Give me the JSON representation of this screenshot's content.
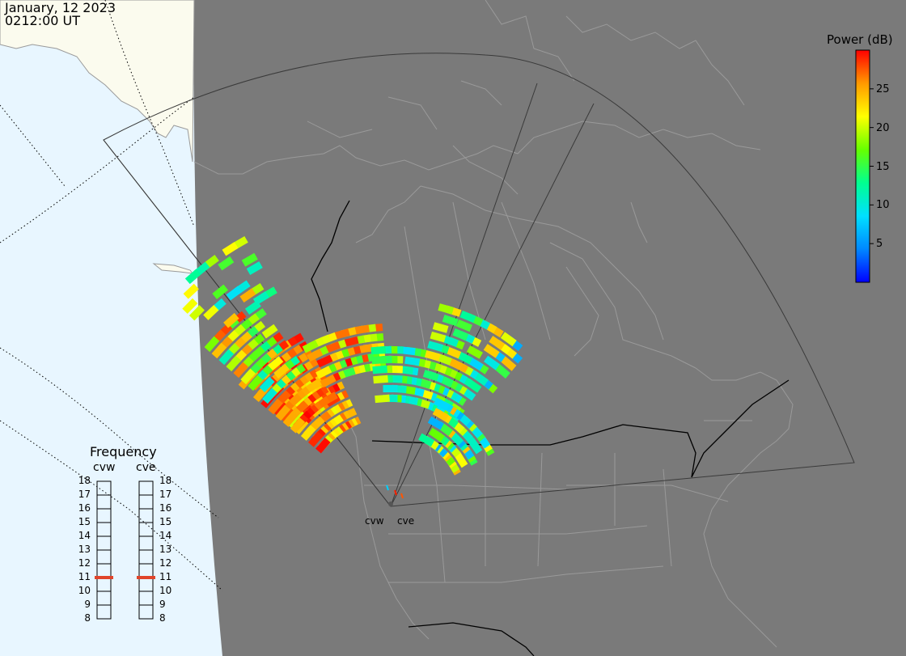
{
  "header": {
    "date": "January, 12 2023",
    "time": "0212:00 UT"
  },
  "colorbar": {
    "title": "Power (dB)",
    "ticks": [
      "25",
      "20",
      "15",
      "10",
      "5"
    ],
    "tick_values": [
      25,
      20,
      15,
      10,
      5
    ],
    "range": [
      0,
      30
    ],
    "colors": [
      "#0000ff",
      "#0088ff",
      "#00e0ff",
      "#00ff90",
      "#66ff00",
      "#ffff00",
      "#ff9900",
      "#ff0000"
    ]
  },
  "radars": {
    "west": {
      "code": "cvw"
    },
    "east": {
      "code": "cve"
    }
  },
  "frequency": {
    "title": "Frequency",
    "labels": [
      "cvw",
      "cve"
    ],
    "scale": [
      "18",
      "17",
      "16",
      "15",
      "14",
      "13",
      "12",
      "11",
      "10",
      "9",
      "8"
    ],
    "cvw_mhz": 11,
    "cve_mhz": 11,
    "marker_color": "#e0442a"
  },
  "map_colors": {
    "night": "#7a7a7a",
    "day_ocean": "#e8f6ff",
    "day_land": "#fbfbee",
    "coast": "#9a9a9a",
    "border": "#000000",
    "fov": "#3a3a3a"
  }
}
